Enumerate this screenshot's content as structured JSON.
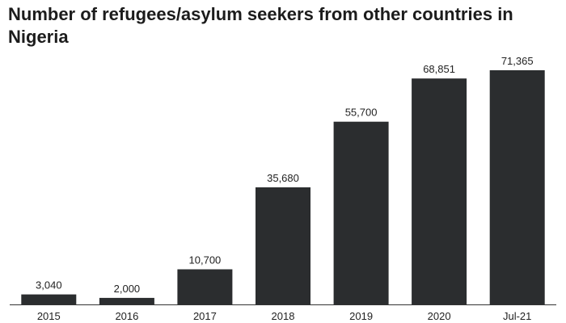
{
  "chart_data": {
    "type": "bar",
    "title": "Number of refugees/asylum seekers from other countries in Nigeria",
    "categories": [
      "2015",
      "2016",
      "2017",
      "2018",
      "2019",
      "2020",
      "Jul-21"
    ],
    "values": [
      3040,
      2000,
      10700,
      35680,
      55700,
      68851,
      71365
    ],
    "value_labels": [
      "3,040",
      "2,000",
      "10,700",
      "35,680",
      "55,700",
      "68,851",
      "71,365"
    ],
    "xlabel": "",
    "ylabel": "",
    "ylim": [
      0,
      71365
    ],
    "grid": false,
    "legend": "none",
    "bar_color": "#2b2d2f"
  }
}
